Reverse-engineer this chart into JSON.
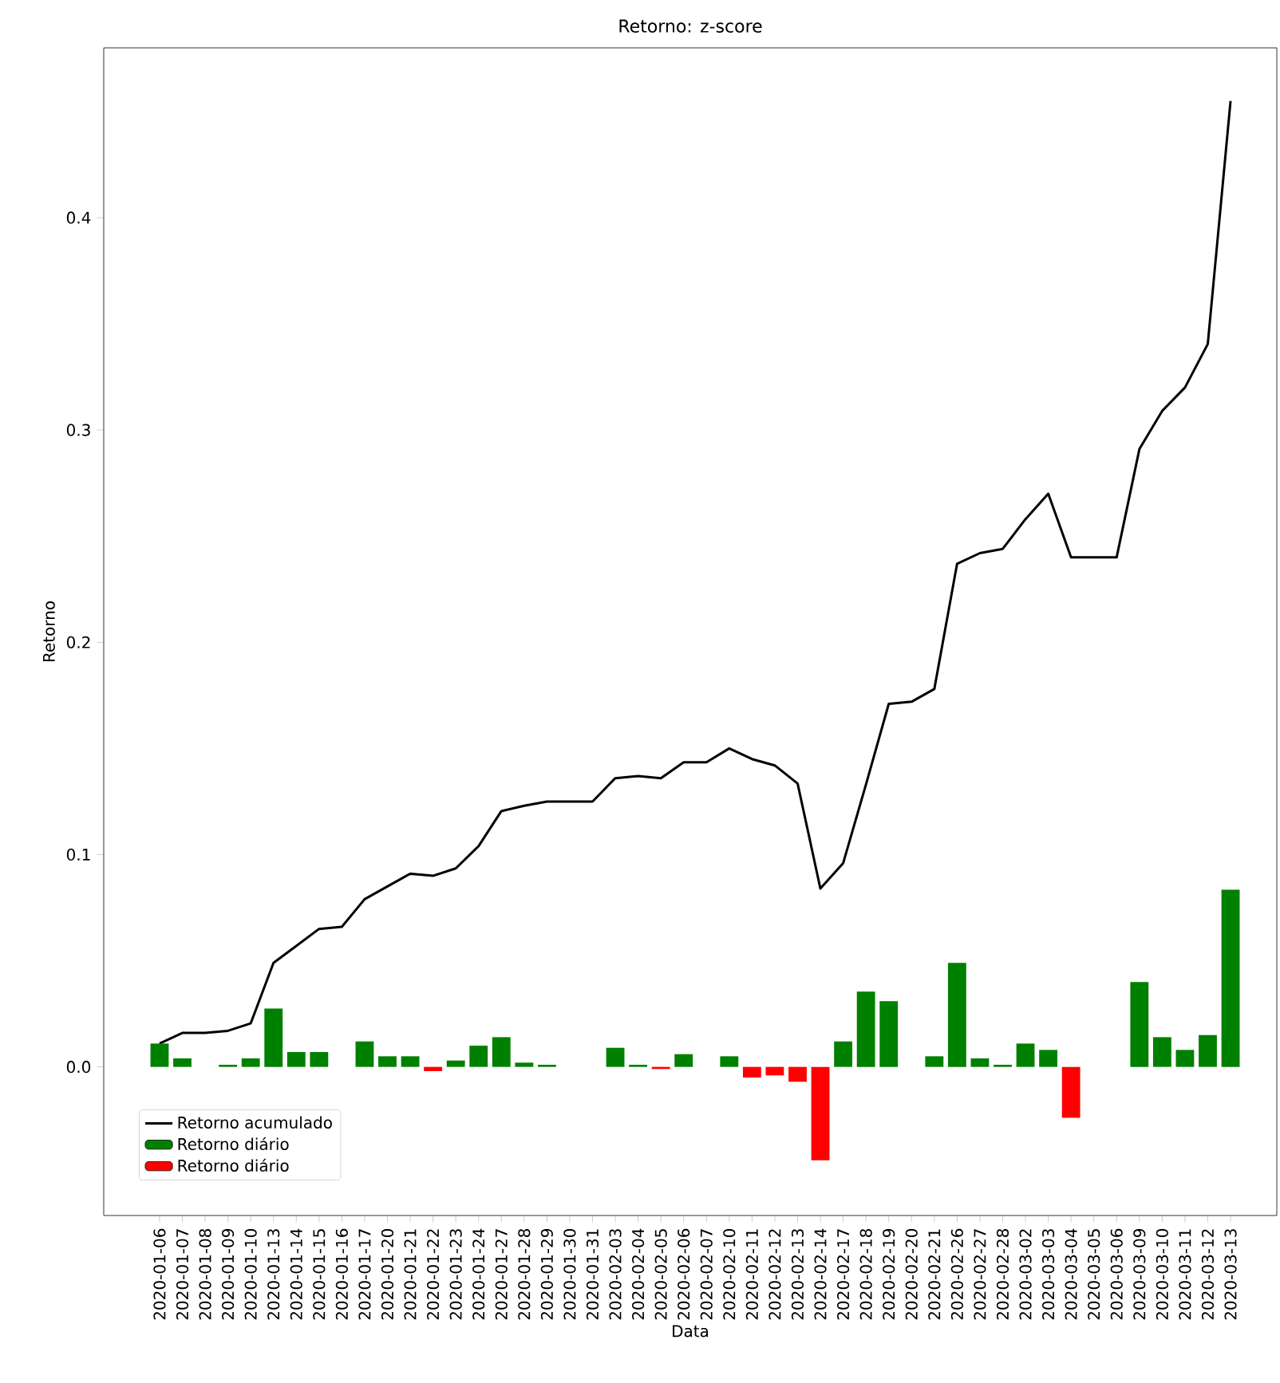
{
  "chart_data": {
    "type": "bar",
    "title": "Retorno: z-score",
    "xlabel": "Data",
    "ylabel": "Retorno",
    "categories": [
      "2020-01-06",
      "2020-01-07",
      "2020-01-08",
      "2020-01-09",
      "2020-01-10",
      "2020-01-13",
      "2020-01-14",
      "2020-01-15",
      "2020-01-16",
      "2020-01-17",
      "2020-01-20",
      "2020-01-21",
      "2020-01-22",
      "2020-01-23",
      "2020-01-24",
      "2020-01-27",
      "2020-01-28",
      "2020-01-29",
      "2020-01-30",
      "2020-01-31",
      "2020-02-03",
      "2020-02-04",
      "2020-02-05",
      "2020-02-06",
      "2020-02-07",
      "2020-02-10",
      "2020-02-11",
      "2020-02-12",
      "2020-02-13",
      "2020-02-14",
      "2020-02-17",
      "2020-02-18",
      "2020-02-19",
      "2020-02-20",
      "2020-02-21",
      "2020-02-26",
      "2020-02-27",
      "2020-02-28",
      "2020-03-02",
      "2020-03-03",
      "2020-03-04",
      "2020-03-05",
      "2020-03-06",
      "2020-03-09",
      "2020-03-10",
      "2020-03-11",
      "2020-03-12",
      "2020-03-13"
    ],
    "series": [
      {
        "name": "Retorno acumulado",
        "type": "line",
        "color": "#000000",
        "values": [
          0.011,
          0.016,
          0.016,
          0.017,
          0.0205,
          0.049,
          0.057,
          0.065,
          0.066,
          0.079,
          0.085,
          0.091,
          0.09,
          0.0935,
          0.104,
          0.1205,
          0.123,
          0.125,
          0.125,
          0.125,
          0.136,
          0.137,
          0.136,
          0.1435,
          0.1435,
          0.15,
          0.145,
          0.142,
          0.1335,
          0.084,
          0.096,
          0.133,
          0.171,
          0.172,
          0.178,
          0.237,
          0.242,
          0.244,
          0.258,
          0.27,
          0.24,
          0.24,
          0.24,
          0.291,
          0.309,
          0.32,
          0.3405,
          0.455
        ]
      },
      {
        "name": "Retorno diário",
        "color": "#008000",
        "values": [
          0.011,
          0.004,
          null,
          0.001,
          0.004,
          0.0275,
          0.007,
          0.007,
          null,
          0.012,
          0.005,
          0.005,
          null,
          0.003,
          0.01,
          0.014,
          0.002,
          0.001,
          null,
          null,
          0.009,
          0.001,
          null,
          0.006,
          null,
          0.005,
          null,
          null,
          null,
          null,
          0.012,
          0.0355,
          0.031,
          null,
          0.005,
          0.049,
          0.004,
          0.001,
          0.011,
          0.008,
          null,
          null,
          null,
          0.04,
          0.014,
          0.008,
          0.015,
          0.0835
        ]
      },
      {
        "name": "Retorno diário",
        "color": "#ff0000",
        "values": [
          null,
          null,
          null,
          null,
          null,
          null,
          null,
          null,
          null,
          null,
          null,
          null,
          -0.002,
          null,
          null,
          null,
          null,
          null,
          null,
          null,
          null,
          null,
          -0.001,
          null,
          null,
          null,
          -0.005,
          -0.004,
          -0.007,
          -0.044,
          null,
          null,
          null,
          null,
          null,
          null,
          null,
          null,
          null,
          null,
          -0.024,
          null,
          null,
          null,
          null,
          null,
          null,
          null
        ]
      }
    ],
    "ylim": [
      -0.07,
      0.48
    ],
    "yticks": [
      {
        "value": 0,
        "label": "0.0"
      },
      0.1,
      0.2,
      0.3,
      0.4
    ],
    "legend": "bottom left",
    "grid": false
  }
}
